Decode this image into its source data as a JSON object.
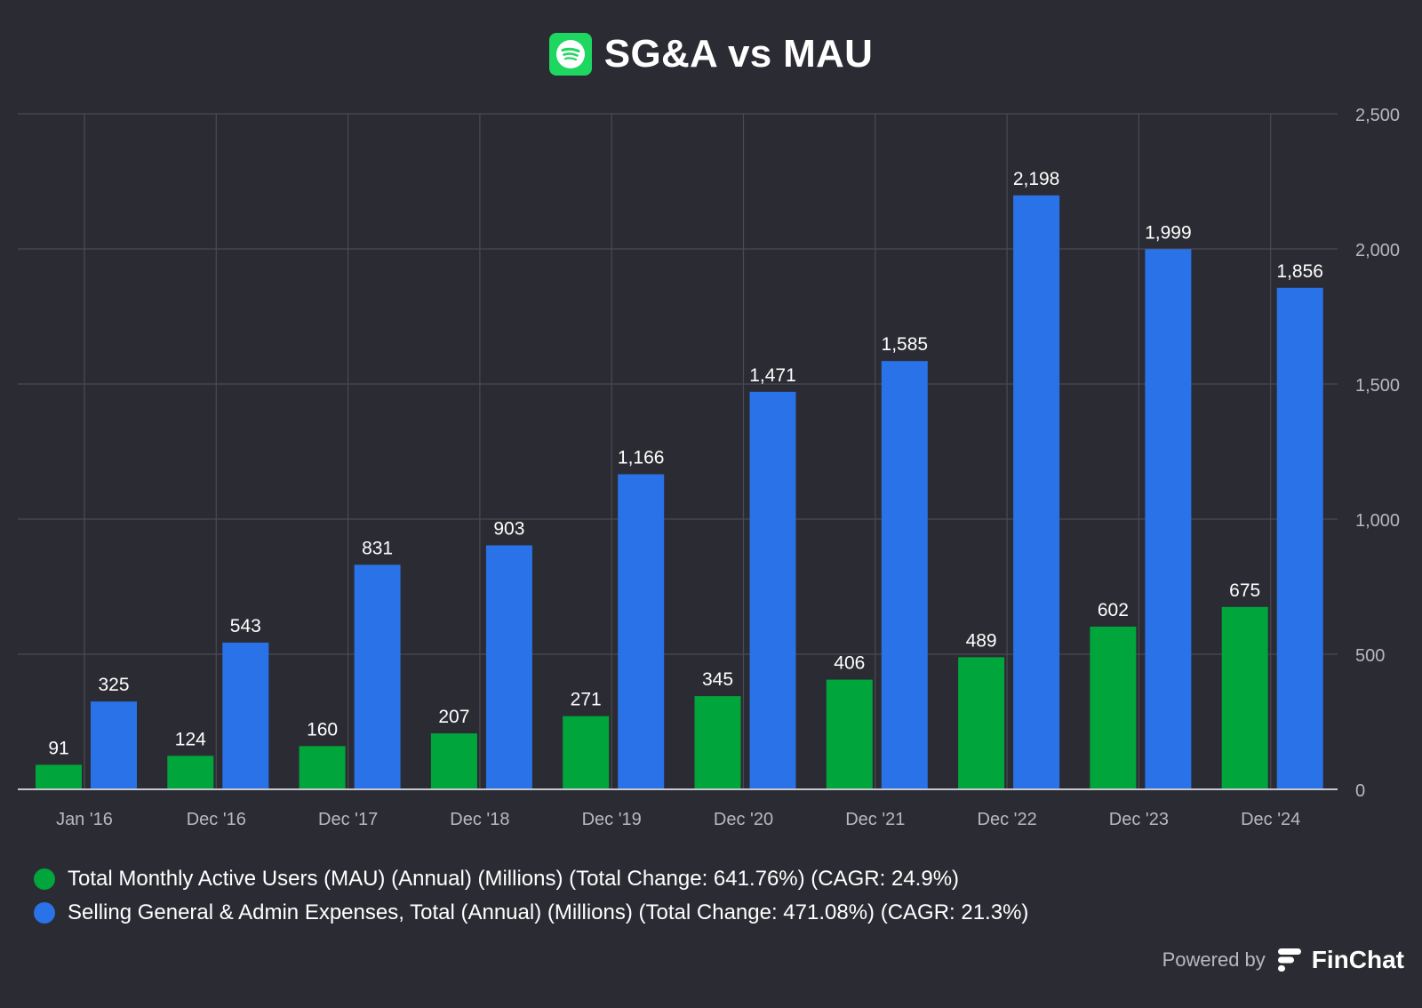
{
  "header": {
    "title": "SG&A vs MAU",
    "logo_icon": "spotify-icon"
  },
  "chart_data": {
    "type": "bar",
    "categories": [
      "Jan '16",
      "Dec '16",
      "Dec '17",
      "Dec '18",
      "Dec '19",
      "Dec '20",
      "Dec '21",
      "Dec '22",
      "Dec '23",
      "Dec '24"
    ],
    "series": [
      {
        "name": "Total Monthly Active Users (MAU) (Annual) (Millions) (Total Change: 641.76%) (CAGR: 24.9%)",
        "color": "#00a53c",
        "values": [
          91,
          124,
          160,
          207,
          271,
          345,
          406,
          489,
          602,
          675
        ],
        "labels": [
          "91",
          "124",
          "160",
          "207",
          "271",
          "345",
          "406",
          "489",
          "602",
          "675"
        ]
      },
      {
        "name": "Selling General & Admin Expenses, Total (Annual) (Millions) (Total Change: 471.08%) (CAGR: 21.3%)",
        "color": "#2a72e8",
        "values": [
          325,
          543,
          831,
          903,
          1166,
          1471,
          1585,
          2198,
          1999,
          1856
        ],
        "labels": [
          "325",
          "543",
          "831",
          "903",
          "1,166",
          "1,471",
          "1,585",
          "2,198",
          "1,999",
          "1,856"
        ]
      }
    ],
    "yticks": [
      0,
      500,
      1000,
      1500,
      2000,
      2500
    ],
    "ytick_labels": [
      "0",
      "500",
      "1,000",
      "1,500",
      "2,000",
      "2,500"
    ],
    "ylim": [
      0,
      2500
    ],
    "grid": true,
    "y_axis_side": "right",
    "legend_position": "bottom-left"
  },
  "footer": {
    "powered_by": "Powered by",
    "brand": "FinChat",
    "brand_icon": "finchat-logo-icon"
  }
}
